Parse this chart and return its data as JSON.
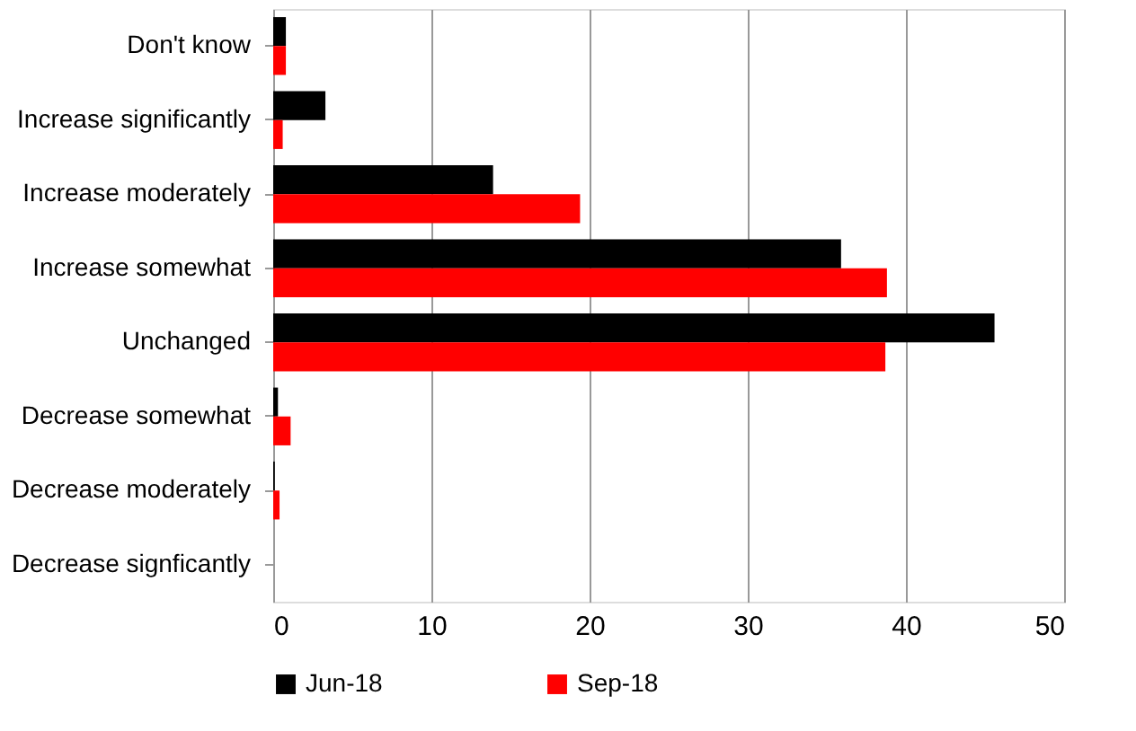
{
  "chart_data": {
    "type": "bar",
    "orientation": "horizontal",
    "categories": [
      "Don't know",
      "Increase significantly",
      "Increase moderately",
      "Increase somewhat",
      "Unchanged",
      "Decrease somewhat",
      "Decrease moderately",
      "Decrease signficantly"
    ],
    "series": [
      {
        "name": "Jun-18",
        "color": "#000000",
        "values": [
          0.8,
          3.3,
          13.9,
          35.9,
          45.6,
          0.3,
          0.1,
          0
        ]
      },
      {
        "name": "Sep-18",
        "color": "#ff0000",
        "values": [
          0.8,
          0.6,
          19.4,
          38.8,
          38.7,
          1.1,
          0.4,
          0
        ]
      }
    ],
    "xlim": [
      0,
      50
    ],
    "xticks": [
      0,
      10,
      20,
      30,
      40,
      50
    ],
    "grid": "x",
    "legend": "bottom"
  }
}
